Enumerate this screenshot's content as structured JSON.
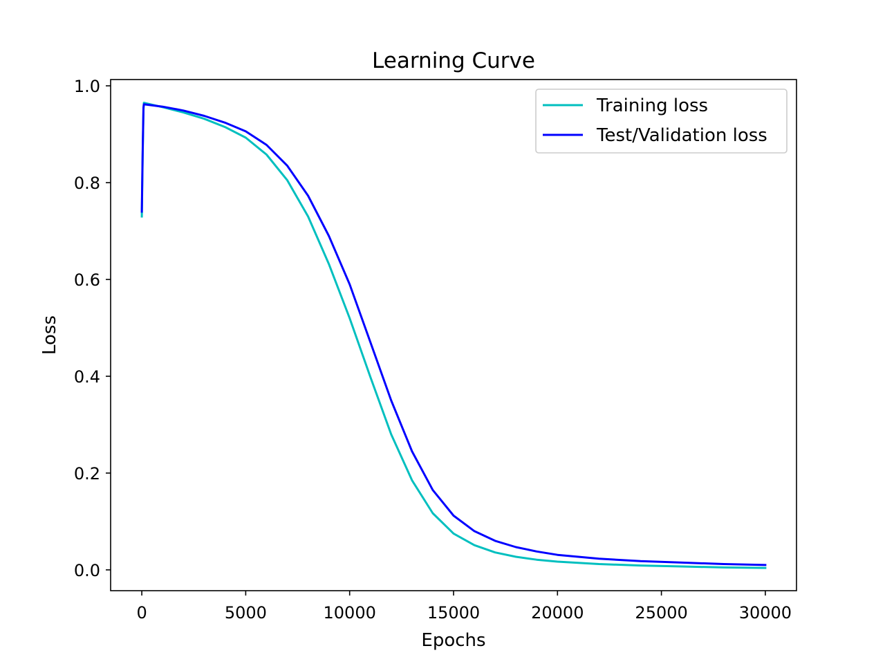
{
  "chart_data": {
    "type": "line",
    "title": "Learning Curve",
    "xlabel": "Epochs",
    "ylabel": "Loss",
    "xlim": [
      -1500,
      31500
    ],
    "ylim": [
      -0.043,
      1.013
    ],
    "xticks": [
      0,
      5000,
      10000,
      15000,
      20000,
      25000,
      30000
    ],
    "yticks": [
      0.0,
      0.2,
      0.4,
      0.6,
      0.8,
      1.0
    ],
    "xtick_labels": [
      "0",
      "5000",
      "10000",
      "15000",
      "20000",
      "25000",
      "30000"
    ],
    "ytick_labels": [
      "0.0",
      "0.2",
      "0.4",
      "0.6",
      "0.8",
      "1.0"
    ],
    "grid": false,
    "legend_position": "top-right",
    "series": [
      {
        "name": "Training loss",
        "color": "#00bfbf",
        "points": [
          [
            0,
            0.73
          ],
          [
            40,
            0.85
          ],
          [
            80,
            0.95
          ],
          [
            100,
            0.965
          ],
          [
            1000,
            0.956
          ],
          [
            2000,
            0.945
          ],
          [
            3000,
            0.932
          ],
          [
            4000,
            0.915
          ],
          [
            5000,
            0.893
          ],
          [
            6000,
            0.858
          ],
          [
            7000,
            0.805
          ],
          [
            8000,
            0.73
          ],
          [
            9000,
            0.632
          ],
          [
            10000,
            0.52
          ],
          [
            11000,
            0.398
          ],
          [
            12000,
            0.28
          ],
          [
            13000,
            0.185
          ],
          [
            14000,
            0.117
          ],
          [
            15000,
            0.075
          ],
          [
            16000,
            0.051
          ],
          [
            17000,
            0.036
          ],
          [
            18000,
            0.027
          ],
          [
            19000,
            0.021
          ],
          [
            20000,
            0.017
          ],
          [
            22000,
            0.012
          ],
          [
            24000,
            0.009
          ],
          [
            26000,
            0.007
          ],
          [
            28000,
            0.005
          ],
          [
            30000,
            0.004
          ]
        ]
      },
      {
        "name": "Test/Validation loss",
        "color": "#0000ff",
        "points": [
          [
            0,
            0.74
          ],
          [
            40,
            0.86
          ],
          [
            80,
            0.955
          ],
          [
            100,
            0.962
          ],
          [
            1000,
            0.957
          ],
          [
            2000,
            0.949
          ],
          [
            3000,
            0.938
          ],
          [
            4000,
            0.924
          ],
          [
            5000,
            0.906
          ],
          [
            6000,
            0.878
          ],
          [
            7000,
            0.835
          ],
          [
            8000,
            0.773
          ],
          [
            9000,
            0.69
          ],
          [
            10000,
            0.59
          ],
          [
            11000,
            0.47
          ],
          [
            12000,
            0.35
          ],
          [
            13000,
            0.245
          ],
          [
            14000,
            0.165
          ],
          [
            15000,
            0.112
          ],
          [
            16000,
            0.08
          ],
          [
            17000,
            0.06
          ],
          [
            18000,
            0.047
          ],
          [
            19000,
            0.038
          ],
          [
            20000,
            0.031
          ],
          [
            22000,
            0.023
          ],
          [
            24000,
            0.018
          ],
          [
            26000,
            0.015
          ],
          [
            28000,
            0.012
          ],
          [
            30000,
            0.01
          ]
        ]
      }
    ]
  }
}
